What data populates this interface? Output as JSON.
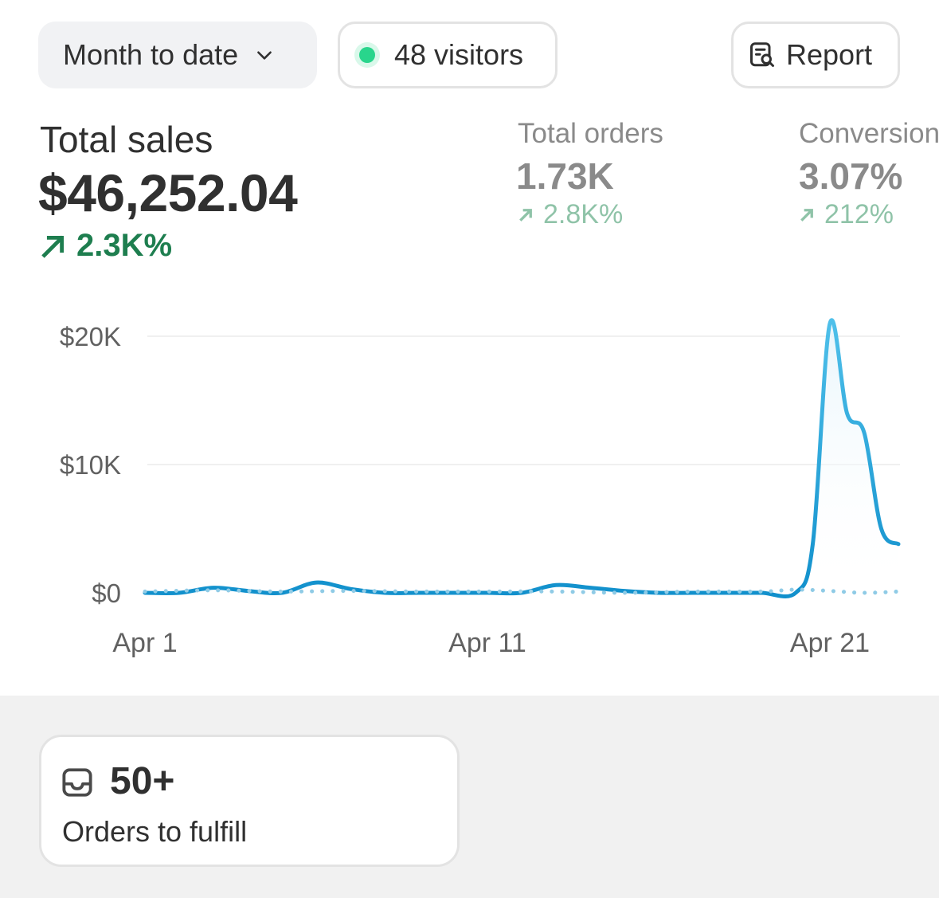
{
  "filters": {
    "date_range": "Month to date",
    "visitors": "48 visitors",
    "report": "Report"
  },
  "metrics": {
    "total_sales": {
      "label": "Total sales",
      "value": "$46,252.04",
      "delta": "2.3K%"
    },
    "total_orders": {
      "label": "Total orders",
      "value": "1.73K",
      "delta": "2.8K%"
    },
    "conversion": {
      "label": "Conversion",
      "value": "3.07%",
      "delta": "212%"
    }
  },
  "colors": {
    "accent_line": "#1e9ad6",
    "positive": "#1e7e4f",
    "positive_muted": "#8fc3a8",
    "live_dot": "#29d58c"
  },
  "chart_data": {
    "type": "line",
    "x_tick_labels": [
      "Apr 1",
      "Apr 11",
      "Apr 21"
    ],
    "y_tick_labels": [
      "$20K",
      "$10K",
      "$0"
    ],
    "y_ticks": [
      20000,
      10000,
      0
    ],
    "ylim": [
      0,
      21000
    ],
    "x_range": [
      1,
      23
    ],
    "grid": true,
    "series": [
      {
        "style": "solid",
        "x": [
          1,
          2,
          3,
          4,
          5,
          6,
          7,
          8,
          9,
          10,
          11,
          12,
          13,
          14,
          15,
          16,
          17,
          18,
          19,
          20,
          20.5,
          21,
          21.5,
          22,
          22.5,
          23
        ],
        "values": [
          0,
          0,
          400,
          150,
          0,
          800,
          300,
          0,
          0,
          0,
          0,
          0,
          600,
          400,
          150,
          0,
          0,
          0,
          0,
          0,
          3800,
          21000,
          14000,
          12500,
          5000,
          3800
        ]
      },
      {
        "style": "dotted",
        "x": [
          1,
          3,
          5,
          7,
          9,
          11,
          13,
          15,
          17,
          19,
          20,
          21,
          22,
          23
        ],
        "values": [
          100,
          200,
          100,
          150,
          100,
          100,
          100,
          0,
          100,
          100,
          250,
          150,
          0,
          100
        ]
      }
    ]
  },
  "fulfill_card": {
    "count": "50+",
    "label": "Orders to fulfill"
  }
}
